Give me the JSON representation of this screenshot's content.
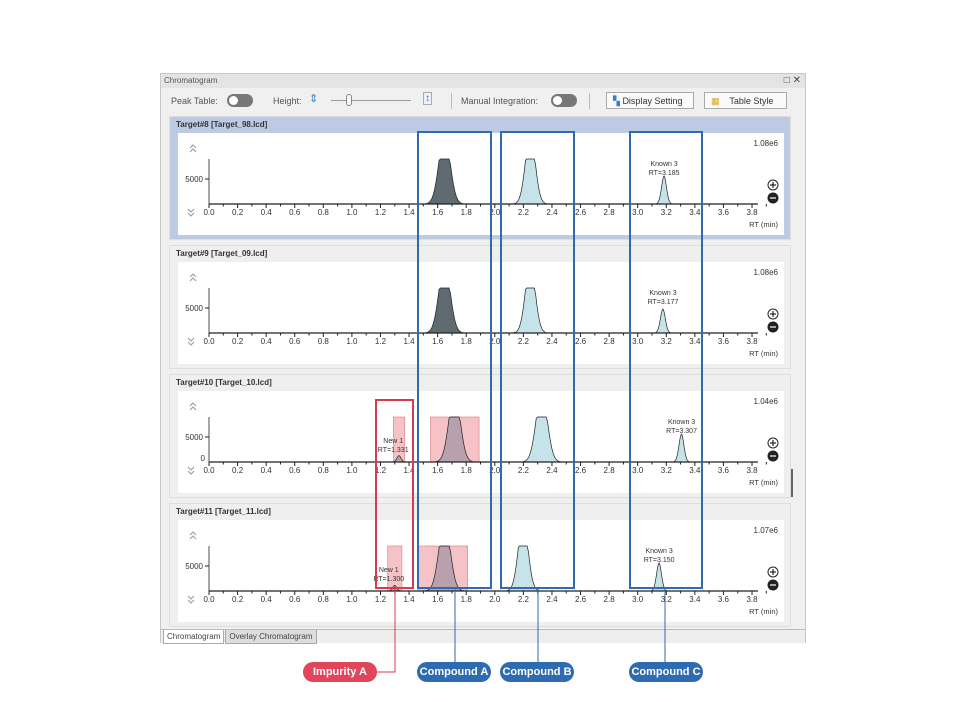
{
  "window": {
    "title": "Chromatogram"
  },
  "toolbar": {
    "peak_table_label": "Peak Table:",
    "height_label": "Height:",
    "height_slider_value": 0.2,
    "manual_integration_label": "Manual Integration:",
    "display_setting_label": "Display Setting",
    "table_style_label": "Table Style"
  },
  "axis": {
    "x_ticks": [
      "0.0",
      "0.2",
      "0.4",
      "0.6",
      "0.8",
      "1.0",
      "1.2",
      "1.4",
      "1.6",
      "1.8",
      "2.0",
      "2.2",
      "2.4",
      "2.6",
      "2.8",
      "3.0",
      "3.2",
      "3.4",
      "3.6",
      "3.8"
    ],
    "x_label": "RT (min)",
    "y_tick": "5000"
  },
  "colors": {
    "blue_box": "#2f6bb0",
    "red_box": "#d83a4e",
    "impurity_fill": "#f5c2c5",
    "compound_a_dark": "#5f6b70",
    "compound_a_mauve": "#b8a0ac",
    "compound_b": "#c6e3ea"
  },
  "chromatograms": [
    {
      "title": "Target#8 [Target_98.lcd]",
      "scale": "1.08e6",
      "selected": true,
      "label_name": "Known 3",
      "label_rt": "RT=3.185",
      "label_at": 3.185,
      "peaks": [
        {
          "rt": 1.65,
          "h": 9000,
          "w": 0.04,
          "color": "#5f6b70"
        },
        {
          "rt": 2.25,
          "h": 9000,
          "w": 0.035,
          "color": "#c6e3ea"
        },
        {
          "rt": 3.185,
          "h": 3500,
          "w": 0.018,
          "color": "#c6e3ea"
        }
      ],
      "shades": []
    },
    {
      "title": "Target#9 [Target_09.lcd]",
      "scale": "1.08e6",
      "selected": false,
      "label_name": "Known 3",
      "label_rt": "RT=3.177",
      "label_at": 3.177,
      "peaks": [
        {
          "rt": 1.65,
          "h": 9000,
          "w": 0.04,
          "color": "#5f6b70"
        },
        {
          "rt": 2.25,
          "h": 9000,
          "w": 0.035,
          "color": "#c6e3ea"
        },
        {
          "rt": 3.177,
          "h": 3000,
          "w": 0.018,
          "color": "#c6e3ea"
        }
      ],
      "shades": []
    },
    {
      "title": "Target#10 [Target_10.lcd]",
      "scale": "1.04e6",
      "selected": false,
      "label_name": "Known 3",
      "label_rt": "RT=3.307",
      "label_at": 3.307,
      "impurity_name": "New 1",
      "impurity_rt": "RT=1.331",
      "impurity_at": 1.331,
      "show_zero": true,
      "peaks": [
        {
          "rt": 1.33,
          "h": 800,
          "w": 0.015,
          "color": "#b8a0ac"
        },
        {
          "rt": 1.72,
          "h": 9000,
          "w": 0.04,
          "color": "#b8a0ac"
        },
        {
          "rt": 2.33,
          "h": 9000,
          "w": 0.04,
          "color": "#c6e3ea"
        },
        {
          "rt": 3.307,
          "h": 3500,
          "w": 0.018,
          "color": "#c6e3ea"
        }
      ],
      "shades": [
        [
          1.29,
          1.37
        ],
        [
          1.55,
          1.89
        ]
      ]
    },
    {
      "title": "Target#11 [Target_11.lcd]",
      "scale": "1.07e6",
      "selected": false,
      "label_name": "Known 3",
      "label_rt": "RT=3.150",
      "label_at": 3.15,
      "impurity_name": "New 1",
      "impurity_rt": "RT=1.300",
      "impurity_at": 1.3,
      "peaks": [
        {
          "rt": 1.3,
          "h": 700,
          "w": 0.015,
          "color": "#b8a0ac"
        },
        {
          "rt": 1.65,
          "h": 9000,
          "w": 0.04,
          "color": "#b8a0ac"
        },
        {
          "rt": 2.2,
          "h": 9000,
          "w": 0.035,
          "color": "#c6e3ea"
        },
        {
          "rt": 3.15,
          "h": 3500,
          "w": 0.018,
          "color": "#c6e3ea"
        }
      ],
      "shades": [
        [
          1.25,
          1.35
        ],
        [
          1.46,
          1.81
        ]
      ]
    }
  ],
  "tabs": [
    {
      "label": "Chromatogram",
      "active": true
    },
    {
      "label": "Overlay Chromatogram",
      "active": false
    }
  ],
  "callouts": [
    {
      "label": "Impurity A",
      "color": "#e0455a"
    },
    {
      "label": "Compound A",
      "color": "#2f6bb0"
    },
    {
      "label": "Compound B",
      "color": "#2f6bb0"
    },
    {
      "label": "Compound C",
      "color": "#2f6bb0"
    }
  ]
}
